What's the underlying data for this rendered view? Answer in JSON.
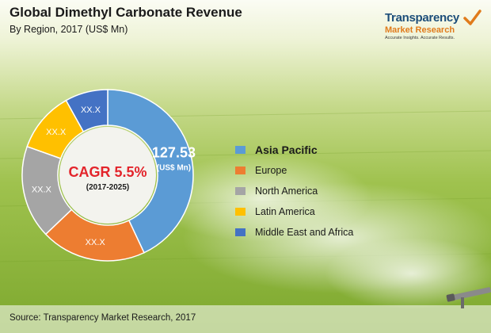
{
  "title": "Global Dimethyl Carbonate Revenue",
  "subtitle": "By Region, 2017 (US$ Mn)",
  "logo": {
    "line1": "Transparency",
    "line2": "Market Research",
    "line3": "Accurate Insights. Accurate Results."
  },
  "source": "Source:  Transparency Market Research, 2017",
  "colors": {
    "asia_pacific": "#5b9bd5",
    "europe": "#ed7d31",
    "north_america": "#a5a5a5",
    "latin_america": "#ffc000",
    "middle_east_africa": "#4472c4"
  },
  "chart_data": {
    "type": "pie",
    "donut": true,
    "title": "Global Dimethyl Carbonate Revenue",
    "subtitle": "By Region, 2017 (US$ Mn)",
    "center_label": "CAGR 5.5%",
    "center_sublabel": "(2017-2025)",
    "legend_position": "right",
    "categories": [
      "Asia Pacific",
      "Europe",
      "North America",
      "Latin America",
      "Middle East and Africa"
    ],
    "values": [
      127.53,
      59,
      52,
      34,
      24
    ],
    "labels": [
      "127.53",
      "XX.X",
      "XX.X",
      "XX.X",
      "XX.X"
    ],
    "value_unit_label": "(US$ Mn)"
  }
}
